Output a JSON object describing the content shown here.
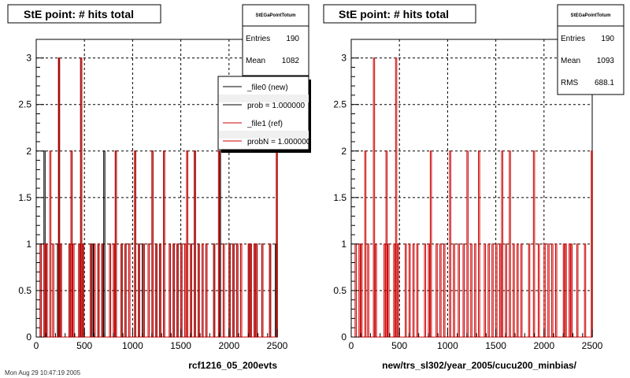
{
  "footer_text": "Mon Aug 29 10:47:19 2005",
  "chart_data": [
    {
      "type": "histogram",
      "title": "StE point: # hits total",
      "xlabel": "rcf1216_05_200evts",
      "xlim": [
        0,
        2500
      ],
      "ylim": [
        0,
        3.2
      ],
      "xticks": [
        "0",
        "500",
        "1000",
        "1500",
        "2000",
        "2500"
      ],
      "yticks": [
        "0",
        "0.5",
        "1",
        "1.5",
        "2",
        "2.5",
        "3"
      ],
      "grid": true,
      "stats": {
        "title": "StEGaPointTotum",
        "rows": [
          {
            "label": "Entries",
            "value": "190"
          },
          {
            "label": "Mean",
            "value": "1082"
          }
        ]
      },
      "legend": {
        "placement": "top-right",
        "entries": [
          {
            "label": "_file0 (new)",
            "color": "#000000"
          },
          {
            "label": "prob = 1.000000",
            "color": "#000000"
          },
          {
            "label": "_file1 (ref)",
            "color": "#cc0000"
          },
          {
            "label": "probN = 1.000000",
            "color": "#cc0000"
          }
        ]
      },
      "series": [
        {
          "color": "#000000",
          "bin_width": 12.5,
          "bins": [
            [
              40,
              1
            ],
            [
              80,
              2
            ],
            [
              100,
              1
            ],
            [
              220,
              1
            ],
            [
              230,
              3
            ],
            [
              250,
              1
            ],
            [
              340,
              1
            ],
            [
              360,
              2
            ],
            [
              380,
              1
            ],
            [
              440,
              1
            ],
            [
              460,
              3
            ],
            [
              480,
              1
            ],
            [
              560,
              1
            ],
            [
              580,
              1
            ],
            [
              640,
              1
            ],
            [
              680,
              1
            ],
            [
              700,
              2
            ],
            [
              760,
              1
            ],
            [
              800,
              1
            ],
            [
              820,
              2
            ],
            [
              880,
              1
            ],
            [
              920,
              1
            ],
            [
              960,
              1
            ],
            [
              1020,
              2
            ],
            [
              1060,
              1
            ],
            [
              1100,
              1
            ],
            [
              1160,
              1
            ],
            [
              1200,
              2
            ],
            [
              1240,
              1
            ],
            [
              1280,
              1
            ],
            [
              1320,
              2
            ],
            [
              1380,
              1
            ],
            [
              1420,
              1
            ],
            [
              1460,
              1
            ],
            [
              1500,
              1
            ],
            [
              1540,
              1
            ],
            [
              1560,
              2
            ],
            [
              1600,
              1
            ],
            [
              1640,
              2
            ],
            [
              1680,
              1
            ],
            [
              1720,
              1
            ],
            [
              1760,
              1
            ],
            [
              1840,
              1
            ],
            [
              1900,
              2
            ],
            [
              1940,
              1
            ],
            [
              2000,
              1
            ],
            [
              2040,
              1
            ],
            [
              2080,
              1
            ],
            [
              2120,
              1
            ],
            [
              2200,
              1
            ],
            [
              2220,
              1
            ],
            [
              2260,
              1
            ],
            [
              2280,
              1
            ],
            [
              2340,
              1
            ],
            [
              2420,
              1
            ],
            [
              2480,
              1
            ]
          ]
        },
        {
          "color": "#cc0000",
          "bin_width": 12.5,
          "bins": [
            [
              40,
              1
            ],
            [
              80,
              1
            ],
            [
              100,
              1
            ],
            [
              140,
              2
            ],
            [
              170,
              1
            ],
            [
              230,
              3
            ],
            [
              250,
              1
            ],
            [
              340,
              1
            ],
            [
              360,
              2
            ],
            [
              380,
              1
            ],
            [
              440,
              1
            ],
            [
              460,
              3
            ],
            [
              480,
              1
            ],
            [
              560,
              1
            ],
            [
              600,
              1
            ],
            [
              640,
              1
            ],
            [
              680,
              1
            ],
            [
              760,
              1
            ],
            [
              800,
              1
            ],
            [
              820,
              2
            ],
            [
              880,
              1
            ],
            [
              920,
              1
            ],
            [
              960,
              1
            ],
            [
              1020,
              2
            ],
            [
              1060,
              1
            ],
            [
              1110,
              1
            ],
            [
              1160,
              1
            ],
            [
              1200,
              2
            ],
            [
              1240,
              1
            ],
            [
              1280,
              1
            ],
            [
              1320,
              2
            ],
            [
              1380,
              1
            ],
            [
              1420,
              1
            ],
            [
              1460,
              1
            ],
            [
              1500,
              1
            ],
            [
              1540,
              1
            ],
            [
              1560,
              2
            ],
            [
              1600,
              1
            ],
            [
              1640,
              2
            ],
            [
              1680,
              1
            ],
            [
              1720,
              1
            ],
            [
              1760,
              1
            ],
            [
              1840,
              1
            ],
            [
              1890,
              2
            ],
            [
              1940,
              1
            ],
            [
              2000,
              1
            ],
            [
              2040,
              1
            ],
            [
              2080,
              1
            ],
            [
              2120,
              1
            ],
            [
              2200,
              1
            ],
            [
              2220,
              1
            ],
            [
              2260,
              1
            ],
            [
              2280,
              1
            ],
            [
              2340,
              1
            ],
            [
              2420,
              1
            ],
            [
              2490,
              2
            ]
          ]
        }
      ]
    },
    {
      "type": "histogram",
      "title": "StE point: # hits total",
      "xlabel": "new/trs_sl302/year_2005/cucu200_minbias/",
      "xlim": [
        0,
        2500
      ],
      "ylim": [
        0,
        3.2
      ],
      "xticks": [
        "0",
        "500",
        "1000",
        "1500",
        "2000",
        "2500"
      ],
      "yticks": [
        "0",
        "0.5",
        "1",
        "1.5",
        "2",
        "2.5",
        "3"
      ],
      "grid": true,
      "stats": {
        "title": "StEGaPointTotum",
        "rows": [
          {
            "label": "Entries",
            "value": "190"
          },
          {
            "label": "Mean",
            "value": "1093"
          },
          {
            "label": "RMS",
            "value": "688.1"
          }
        ]
      },
      "series": [
        {
          "color": "#cc0000",
          "bin_width": 12.5,
          "bins": [
            [
              40,
              1
            ],
            [
              80,
              1
            ],
            [
              100,
              1
            ],
            [
              140,
              2
            ],
            [
              170,
              1
            ],
            [
              230,
              3
            ],
            [
              250,
              1
            ],
            [
              340,
              1
            ],
            [
              360,
              2
            ],
            [
              380,
              1
            ],
            [
              440,
              1
            ],
            [
              460,
              3
            ],
            [
              480,
              1
            ],
            [
              560,
              1
            ],
            [
              600,
              1
            ],
            [
              640,
              1
            ],
            [
              680,
              1
            ],
            [
              760,
              1
            ],
            [
              800,
              1
            ],
            [
              820,
              2
            ],
            [
              880,
              1
            ],
            [
              920,
              1
            ],
            [
              960,
              1
            ],
            [
              1020,
              2
            ],
            [
              1060,
              1
            ],
            [
              1110,
              1
            ],
            [
              1160,
              1
            ],
            [
              1200,
              2
            ],
            [
              1240,
              1
            ],
            [
              1280,
              1
            ],
            [
              1320,
              2
            ],
            [
              1380,
              1
            ],
            [
              1420,
              1
            ],
            [
              1460,
              1
            ],
            [
              1500,
              1
            ],
            [
              1540,
              1
            ],
            [
              1560,
              2
            ],
            [
              1600,
              1
            ],
            [
              1640,
              2
            ],
            [
              1680,
              1
            ],
            [
              1720,
              1
            ],
            [
              1760,
              1
            ],
            [
              1840,
              1
            ],
            [
              1890,
              2
            ],
            [
              1940,
              1
            ],
            [
              2000,
              1
            ],
            [
              2040,
              1
            ],
            [
              2080,
              1
            ],
            [
              2120,
              1
            ],
            [
              2200,
              1
            ],
            [
              2220,
              1
            ],
            [
              2260,
              1
            ],
            [
              2280,
              1
            ],
            [
              2340,
              1
            ],
            [
              2420,
              1
            ],
            [
              2490,
              2
            ]
          ]
        }
      ]
    }
  ]
}
